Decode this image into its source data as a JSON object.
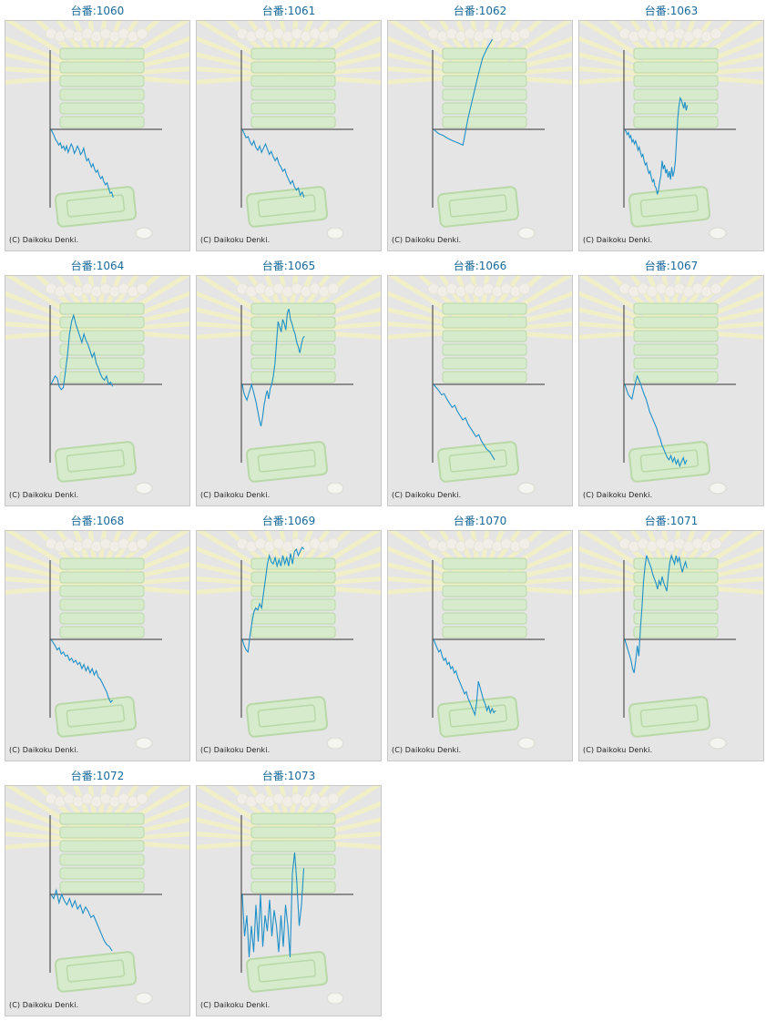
{
  "chart_data": [
    {
      "type": "line",
      "title": "台番:1060",
      "credit": "(C) Daikoku Denki.",
      "values": [
        0,
        -3,
        -6,
        -10,
        -12,
        -15,
        -13,
        -18,
        -16,
        -20,
        -16,
        -22,
        -18,
        -14,
        -17,
        -23,
        -20,
        -16,
        -19,
        -24,
        -22,
        -18,
        -25,
        -30,
        -28,
        -32,
        -36,
        -33,
        -38,
        -41,
        -39,
        -44,
        -47,
        -45,
        -50,
        -53,
        -51,
        -56,
        -61,
        -60,
        -65
      ]
    },
    {
      "type": "line",
      "title": "台番:1061",
      "credit": "(C) Daikoku Denki.",
      "values": [
        0,
        -4,
        -8,
        -7,
        -12,
        -15,
        -11,
        -17,
        -20,
        -16,
        -22,
        -18,
        -14,
        -19,
        -24,
        -21,
        -26,
        -30,
        -27,
        -33,
        -36,
        -40,
        -38,
        -44,
        -48,
        -52,
        -49,
        -55,
        -58,
        -56,
        -63,
        -60,
        -65
      ]
    },
    {
      "type": "line",
      "title": "台番:1062",
      "credit": "(C) Daikoku Denki.",
      "values": [
        0,
        -4,
        -6,
        -9,
        -11,
        -13,
        -15,
        10,
        30,
        50,
        68,
        78,
        86
      ]
    },
    {
      "type": "line",
      "title": "台番:1063",
      "credit": "(C) Daikoku Denki.",
      "values": [
        0,
        -2,
        -5,
        -3,
        -8,
        -6,
        -12,
        -10,
        -14,
        -11,
        -15,
        -20,
        -17,
        -22,
        -26,
        -24,
        -30,
        -34,
        -32,
        -38,
        -42,
        -40,
        -46,
        -50,
        -48,
        -54,
        -56,
        -62,
        -58,
        -50,
        -44,
        -30,
        -38,
        -34,
        -42,
        -38,
        -46,
        -40,
        -48,
        -36,
        -45,
        -40,
        -30,
        -10,
        10,
        22,
        30,
        28,
        24,
        20,
        26,
        18,
        23
      ]
    },
    {
      "type": "line",
      "title": "台番:1064",
      "credit": "(C) Daikoku Denki.",
      "values": [
        0,
        4,
        8,
        6,
        -2,
        -5,
        -3,
        12,
        28,
        48,
        60,
        66,
        58,
        52,
        46,
        40,
        48,
        42,
        38,
        32,
        26,
        30,
        20,
        16,
        10,
        6,
        4,
        8,
        0,
        2,
        -2
      ]
    },
    {
      "type": "line",
      "title": "台番:1065",
      "credit": "(C) Daikoku Denki.",
      "values": [
        0,
        -8,
        -12,
        -15,
        -10,
        -5,
        0,
        -6,
        -12,
        -18,
        -26,
        -34,
        -40,
        -32,
        -20,
        -12,
        -6,
        -14,
        -4,
        0,
        8,
        20,
        40,
        60,
        55,
        50,
        62,
        58,
        52,
        68,
        72,
        62,
        58,
        52,
        48,
        40,
        36,
        30,
        38,
        44,
        46
      ]
    },
    {
      "type": "line",
      "title": "台番:1066",
      "credit": "(C) Daikoku Denki.",
      "values": [
        0,
        -3,
        -6,
        -10,
        -9,
        -14,
        -18,
        -22,
        -20,
        -26,
        -30,
        -34,
        -32,
        -38,
        -42,
        -46,
        -50,
        -48,
        -54,
        -58,
        -62,
        -64,
        -68,
        -72
      ]
    },
    {
      "type": "line",
      "title": "台番:1067",
      "credit": "(C) Daikoku Denki.",
      "values": [
        0,
        -5,
        -10,
        -12,
        -14,
        -6,
        2,
        8,
        4,
        0,
        -5,
        -10,
        -14,
        -20,
        -26,
        -30,
        -34,
        -38,
        -42,
        -48,
        -52,
        -58,
        -62,
        -66,
        -70,
        -72,
        -68,
        -74,
        -70,
        -76,
        -72,
        -78,
        -74,
        -70,
        -76,
        -72
      ]
    },
    {
      "type": "line",
      "title": "台番:1068",
      "credit": "(C) Daikoku Denki.",
      "values": [
        0,
        -3,
        -6,
        -10,
        -8,
        -14,
        -12,
        -16,
        -15,
        -20,
        -18,
        -22,
        -20,
        -24,
        -22,
        -28,
        -24,
        -30,
        -26,
        -32,
        -28,
        -34,
        -30,
        -36,
        -38,
        -42,
        -46,
        -50,
        -56,
        -60,
        -58
      ]
    },
    {
      "type": "line",
      "title": "台番:1069",
      "credit": "(C) Daikoku Denki.",
      "values": [
        0,
        -6,
        -10,
        -12,
        4,
        16,
        26,
        30,
        28,
        34,
        30,
        44,
        58,
        72,
        80,
        74,
        72,
        78,
        70,
        76,
        70,
        80,
        72,
        78,
        70,
        82,
        72,
        84,
        86,
        80,
        84,
        88,
        86
      ]
    },
    {
      "type": "line",
      "title": "台番:1070",
      "credit": "(C) Daikoku Denki.",
      "values": [
        0,
        -4,
        -8,
        -12,
        -10,
        -16,
        -20,
        -18,
        -24,
        -22,
        -28,
        -26,
        -32,
        -30,
        -36,
        -40,
        -44,
        -48,
        -52,
        -50,
        -56,
        -60,
        -64,
        -68,
        -72,
        -60,
        -40,
        -46,
        -52,
        -58,
        -62,
        -68,
        -64,
        -70,
        -66,
        -70,
        -68
      ]
    },
    {
      "type": "line",
      "title": "台番:1071",
      "credit": "(C) Daikoku Denki.",
      "values": [
        0,
        -5,
        -10,
        -15,
        -20,
        -28,
        -32,
        -20,
        -6,
        -16,
        10,
        30,
        55,
        70,
        80,
        76,
        72,
        68,
        62,
        58,
        54,
        48,
        56,
        52,
        60,
        54,
        50,
        46,
        62,
        74,
        80,
        76,
        72,
        80,
        74,
        78,
        70,
        64,
        70,
        74,
        68
      ]
    },
    {
      "type": "line",
      "title": "台番:1072",
      "credit": "(C) Daikoku Denki.",
      "values": [
        0,
        -4,
        4,
        -8,
        0,
        -6,
        -10,
        -4,
        -12,
        -6,
        -14,
        -10,
        -18,
        -12,
        -16,
        -22,
        -20,
        -26,
        -32,
        -38,
        -44,
        -48,
        -50,
        -54
      ]
    },
    {
      "type": "line",
      "title": "台番:1073",
      "credit": "(C) Daikoku Denki.",
      "values": [
        0,
        -40,
        -20,
        -60,
        -30,
        -55,
        -10,
        -45,
        0,
        -50,
        -20,
        -35,
        -5,
        -40,
        -15,
        -30,
        -55,
        -20,
        -50,
        -10,
        -30,
        -60,
        20,
        40,
        10,
        -30,
        -10,
        25
      ]
    }
  ]
}
